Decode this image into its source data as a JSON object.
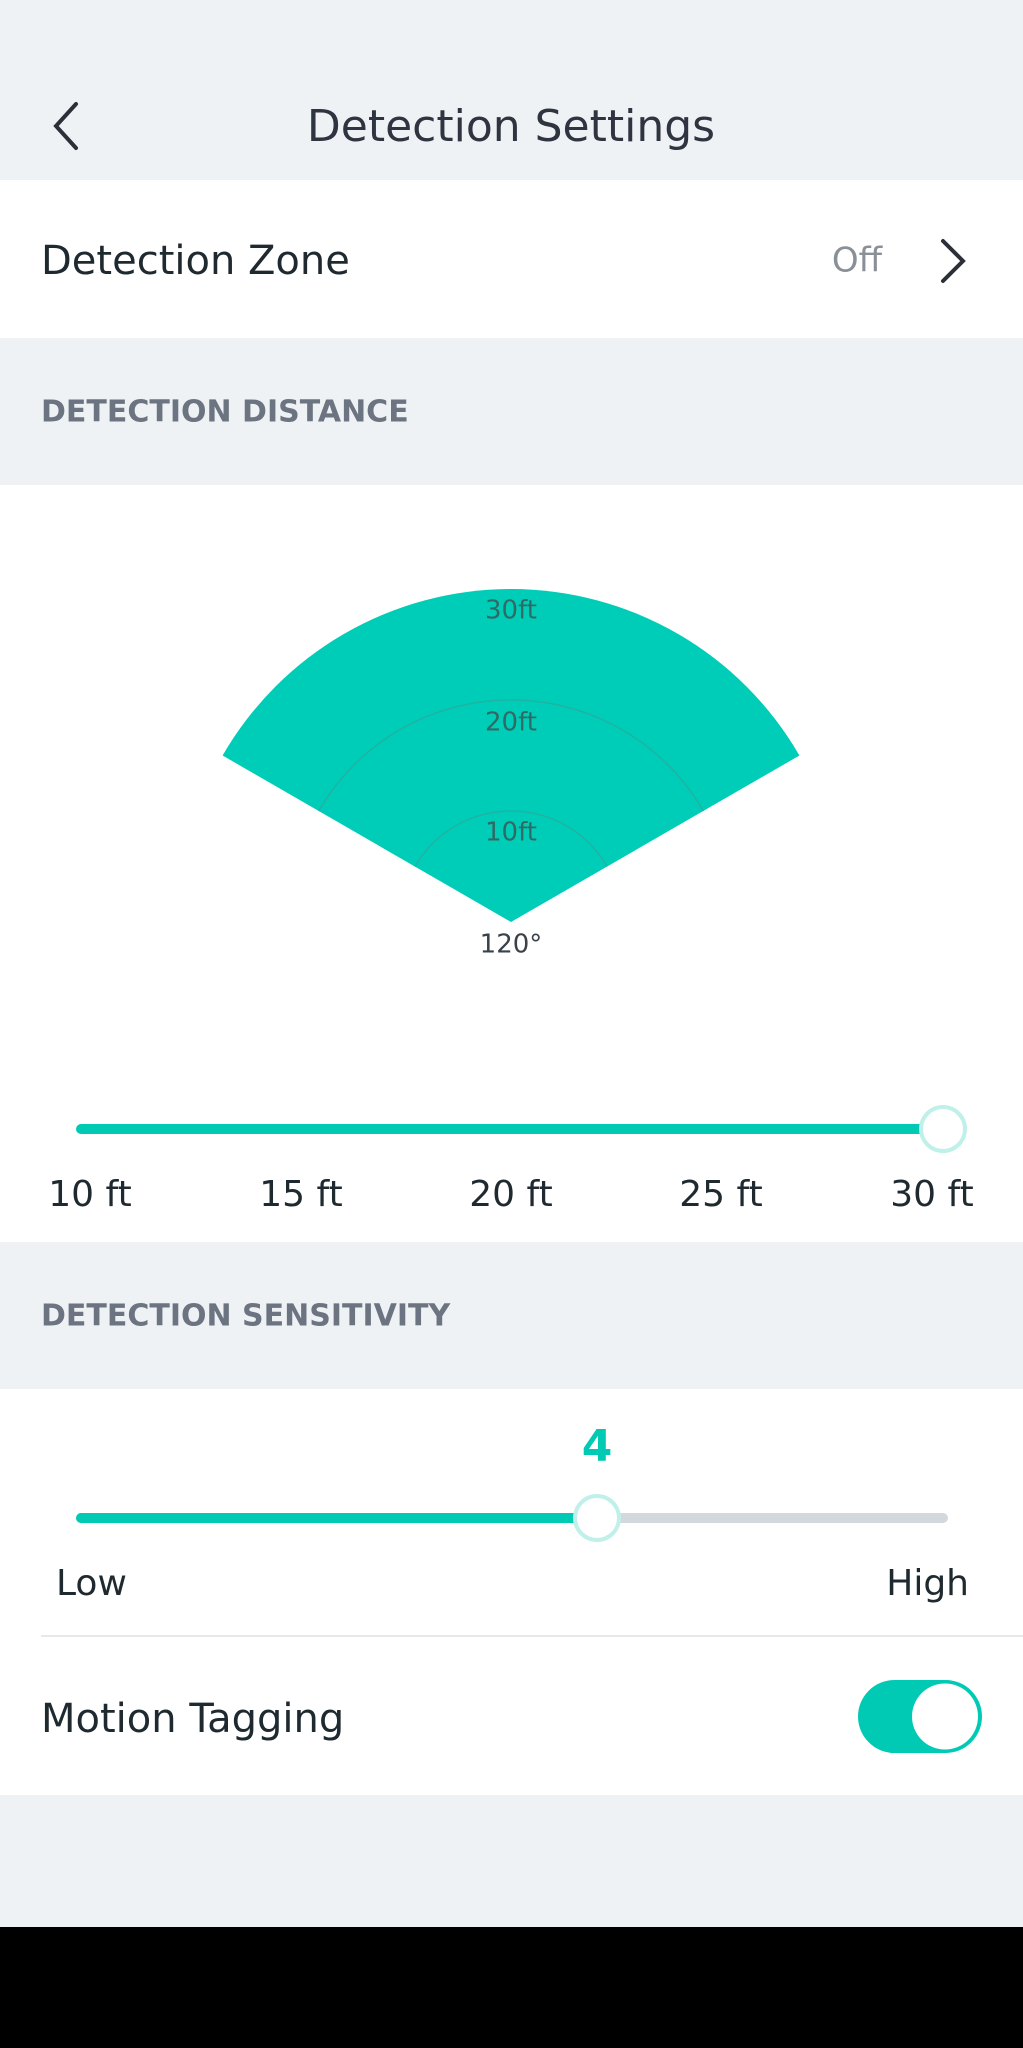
{
  "header": {
    "title": "Detection Settings"
  },
  "detection_zone": {
    "label": "Detection Zone",
    "value": "Off"
  },
  "detection_distance": {
    "heading": "DETECTION DISTANCE",
    "fan_labels": [
      "30ft",
      "20ft",
      "10ft"
    ],
    "angle_label": "120°",
    "slider_labels": [
      "10 ft",
      "15 ft",
      "20 ft",
      "25 ft",
      "30 ft"
    ]
  },
  "detection_sensitivity": {
    "heading": "DETECTION SENSITIVITY",
    "value": "4",
    "low_label": "Low",
    "high_label": "High"
  },
  "motion_tagging": {
    "label": "Motion Tagging"
  }
}
